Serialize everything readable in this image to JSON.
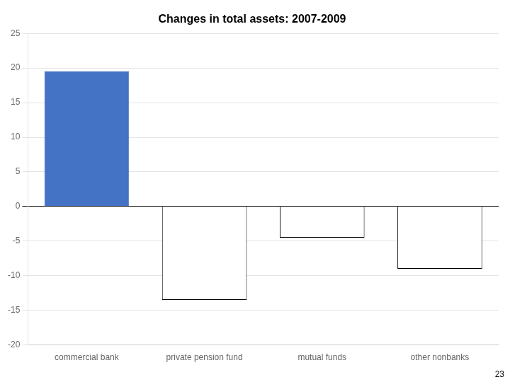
{
  "chart_data": {
    "type": "bar",
    "title": "Changes in total assets: 2007-2009",
    "categories": [
      "commercial bank",
      "private pension fund",
      "mutual funds",
      "other nonbanks"
    ],
    "values": [
      19.5,
      -13.5,
      -4.5,
      -9.0
    ],
    "colors": [
      "#4472C4",
      "white",
      "white",
      "white"
    ],
    "ylim": [
      -20,
      25
    ],
    "yticks": [
      -20,
      -15,
      -10,
      -5,
      0,
      5,
      10,
      15,
      20,
      25
    ],
    "grid": true,
    "annotations": [
      "23"
    ]
  }
}
